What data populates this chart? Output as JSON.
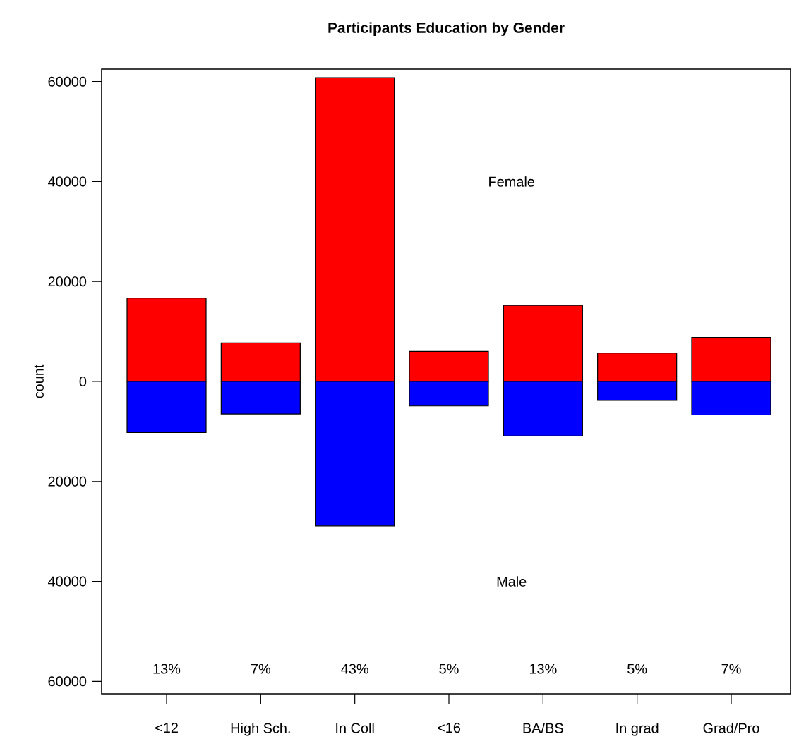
{
  "chart_data": {
    "type": "bar",
    "title": "Participants Education by Gender",
    "ylabel": "count",
    "categories": [
      "<12",
      "High Sch.",
      "In Coll",
      "<16",
      "BA/BS",
      "In grad",
      "Grad/Pro"
    ],
    "stacked": true,
    "series": [
      {
        "color": "#ff0000",
        "values": [
          16700,
          7700,
          60800,
          6000,
          15200,
          5700,
          8800
        ]
      },
      {
        "color": "#0000ff",
        "values": [
          -10200,
          -6500,
          -28900,
          -4900,
          -10900,
          -3800,
          -6700
        ]
      }
    ],
    "ylim": [
      -62500,
      62500
    ],
    "yticks": [
      {
        "value": -60000,
        "label": "60000"
      },
      {
        "value": -40000,
        "label": "40000"
      },
      {
        "value": -20000,
        "label": "20000"
      },
      0,
      20000,
      40000,
      60000
    ],
    "annotations": [
      "Female",
      "Male",
      "13%",
      "7%",
      "43%",
      "5%",
      "13%",
      "5%",
      "7%"
    ],
    "grid": false
  }
}
